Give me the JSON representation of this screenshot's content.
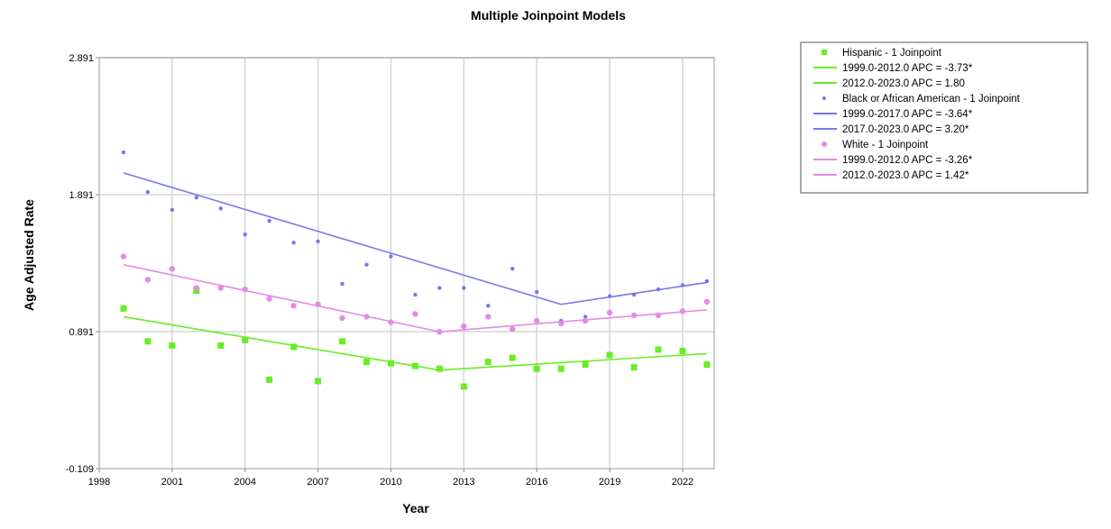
{
  "chart_data": {
    "type": "scatter",
    "title": "Multiple Joinpoint Models",
    "xlabel": "Year",
    "ylabel": "Age Adjusted Rate",
    "xlim": [
      1998,
      2023.3
    ],
    "ylim": [
      -0.109,
      2.891
    ],
    "x_ticks": [
      1998,
      2001,
      2004,
      2007,
      2010,
      2013,
      2016,
      2019,
      2022
    ],
    "x_tick_labels": [
      "1998",
      "2001",
      "2004",
      "2007",
      "2010",
      "2013",
      "2016",
      "2019",
      "2022"
    ],
    "y_ticks": [
      -0.109,
      0.891,
      1.891,
      2.891
    ],
    "y_tick_labels": [
      "-0.109",
      "0.891",
      "1.891",
      "2.891"
    ],
    "grid": true,
    "legend_position": "right",
    "x": [
      1999,
      2000,
      2001,
      2002,
      2003,
      2004,
      2005,
      2006,
      2007,
      2008,
      2009,
      2010,
      2011,
      2012,
      2013,
      2014,
      2015,
      2016,
      2017,
      2018,
      2019,
      2020,
      2021,
      2022,
      2023
    ],
    "series": [
      {
        "name": "Hispanic - 1 Joinpoint",
        "color": "#66ee22",
        "marker": "square",
        "values": [
          1.06,
          0.82,
          0.79,
          1.19,
          0.79,
          0.83,
          0.54,
          0.78,
          0.53,
          0.82,
          0.67,
          0.66,
          0.64,
          0.62,
          0.49,
          0.67,
          0.7,
          0.62,
          0.62,
          0.65,
          0.72,
          0.63,
          0.76,
          0.75,
          0.65
        ],
        "fit": [
          {
            "label": "1999.0-2012.0 APC  =  -3.73*",
            "x": [
              1999,
              2012
            ],
            "y": [
              1.0,
              0.61
            ]
          },
          {
            "label": "2012.0-2023.0 APC  =  1.80",
            "x": [
              2012,
              2023
            ],
            "y": [
              0.61,
              0.73
            ]
          }
        ]
      },
      {
        "name": "Black or African American - 1 Joinpoint",
        "color": "#7777ee",
        "marker": "dot",
        "values": [
          2.2,
          1.91,
          1.78,
          1.87,
          1.79,
          1.6,
          1.7,
          1.54,
          1.55,
          1.24,
          1.38,
          1.44,
          1.16,
          1.21,
          1.21,
          1.08,
          1.35,
          1.18,
          0.97,
          1.0,
          1.15,
          1.16,
          1.2,
          1.23,
          1.26
        ],
        "fit": [
          {
            "label": "1999.0-2017.0 APC  =  -3.64*",
            "x": [
              1999,
              2017
            ],
            "y": [
              2.05,
              1.09
            ]
          },
          {
            "label": "2017.0-2023.0 APC  =  3.20*",
            "x": [
              2017,
              2023
            ],
            "y": [
              1.09,
              1.25
            ]
          }
        ]
      },
      {
        "name": "White - 1 Joinpoint",
        "color": "#e48be4",
        "marker": "dot",
        "values": [
          1.44,
          1.27,
          1.35,
          1.21,
          1.21,
          1.2,
          1.13,
          1.08,
          1.09,
          0.99,
          1.0,
          0.96,
          1.02,
          0.89,
          0.93,
          1.0,
          0.91,
          0.97,
          0.95,
          0.97,
          1.03,
          1.01,
          1.01,
          1.04,
          1.11
        ],
        "fit": [
          {
            "label": "1999.0-2012.0 APC  =  -3.26*",
            "x": [
              1999,
              2012
            ],
            "y": [
              1.38,
              0.89
            ]
          },
          {
            "label": "2012.0-2023.0 APC  =  1.42*",
            "x": [
              2012,
              2023
            ],
            "y": [
              0.89,
              1.05
            ]
          }
        ]
      }
    ]
  }
}
